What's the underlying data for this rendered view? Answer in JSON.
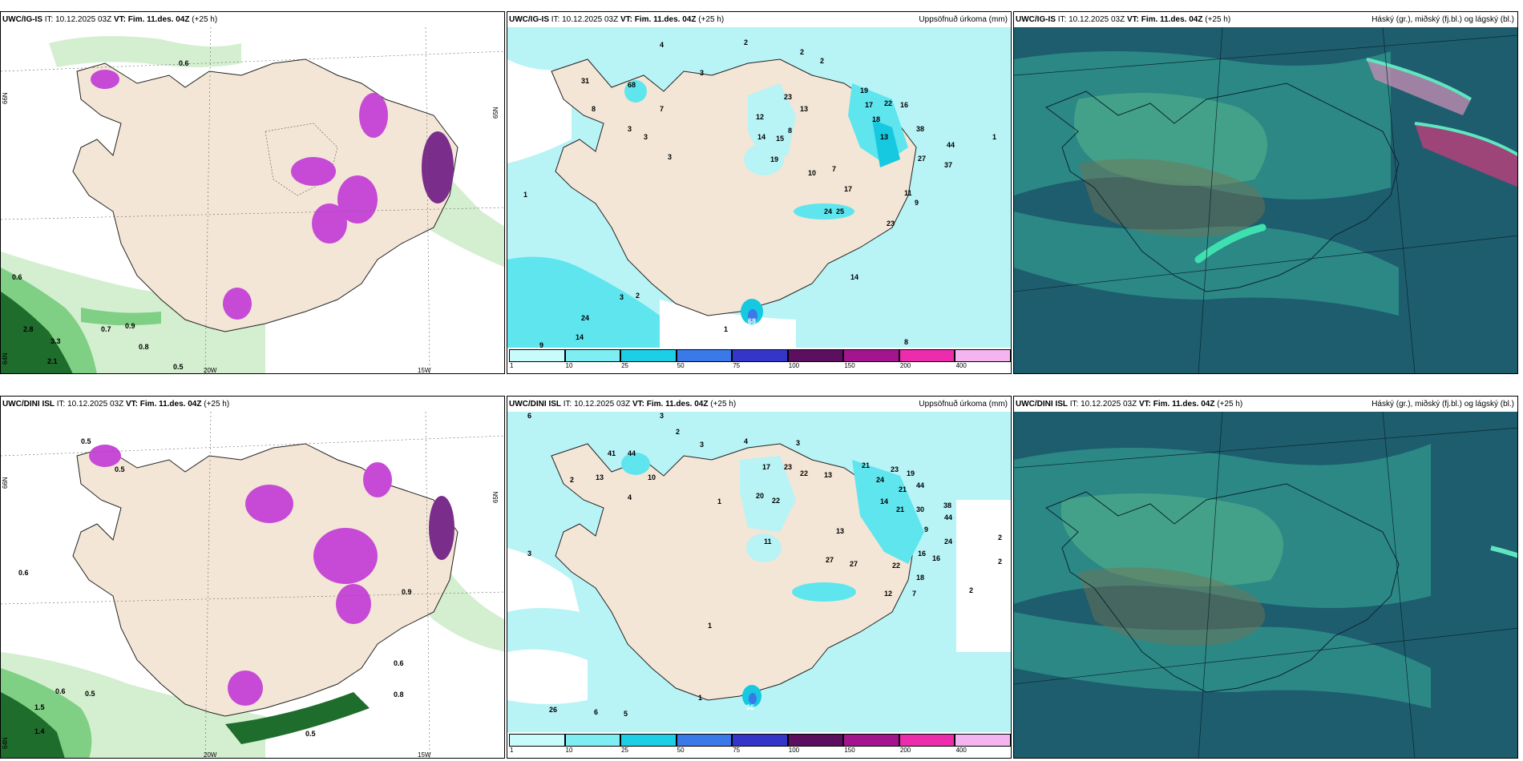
{
  "colors": {
    "land": "#f3e6d6",
    "sea_light": "#b8f3f6",
    "precip_mid": "#5ee5ee",
    "precip_high": "#16c8e0",
    "green_light": "#d4efd0",
    "green_mid": "#7fcf84",
    "green_dark": "#1f6d2d",
    "purple": "#c64ad6",
    "cloud_bg": "#1d5d6e",
    "cloud_mid": "#2f8f8a",
    "cloud_low": "#4aa88a"
  },
  "rows": [
    {
      "model": "UWC/IG-IS",
      "it": "IT: 10.12.2025 03Z",
      "vt": "VT: Fim. 11.des. 04Z",
      "lead": "(+25 h)",
      "wind_labels": [
        "0.6",
        "0.6",
        "2.8",
        "3.3",
        "0.7",
        "0.9",
        "0.8",
        "2.1",
        "0.5"
      ],
      "axis_labels": [
        "66N",
        "65N",
        "64N",
        "20W",
        "15W"
      ],
      "precip_labels": [
        "4",
        "2",
        "3",
        "2",
        "2",
        "31",
        "68",
        "8",
        "7",
        "3",
        "3",
        "3",
        "1",
        "12",
        "23",
        "13",
        "19",
        "17",
        "22",
        "16",
        "18",
        "13",
        "38",
        "44",
        "37",
        "27",
        "14",
        "15",
        "8",
        "19",
        "10",
        "7",
        "17",
        "11",
        "9",
        "24",
        "25",
        "23",
        "14",
        "1",
        "3",
        "2",
        "24",
        "14",
        "9",
        "1",
        "68",
        "8"
      ],
      "cloud_title": "Háský (gr.), miðský (fj.bl.) og lágský (bl.)",
      "precip_title": "Uppsöfnuð úrkoma (mm)"
    },
    {
      "model": "UWC/DINI ISL",
      "it": "IT: 10.12.2025 03Z",
      "vt": "VT: Fim. 11.des. 04Z",
      "lead": "(+25 h)",
      "wind_labels": [
        "0.5",
        "0.5",
        "0.6",
        "0.6",
        "0.5",
        "1.5",
        "1.4",
        "0.6",
        "0.8",
        "0.9",
        "0.5"
      ],
      "axis_labels": [
        "66N",
        "65N",
        "64N",
        "20W",
        "15W"
      ],
      "precip_labels": [
        "6",
        "3",
        "2",
        "3",
        "4",
        "3",
        "41",
        "44",
        "13",
        "10",
        "2",
        "4",
        "1",
        "17",
        "23",
        "22",
        "13",
        "21",
        "24",
        "23",
        "19",
        "20",
        "22",
        "11",
        "14",
        "21",
        "44",
        "38",
        "30",
        "44",
        "24",
        "21",
        "13",
        "27",
        "27",
        "22",
        "16",
        "16",
        "18",
        "12",
        "9",
        "7",
        "2",
        "2",
        "2",
        "3",
        "26",
        "6",
        "5",
        "1",
        "1",
        "36"
      ],
      "cloud_title": "Háský (gr.), miðský (fj.bl.) og lágský (bl.)",
      "precip_title": "Uppsöfnuð úrkoma (mm)"
    }
  ],
  "colorbar": {
    "ticks": [
      "1",
      "10",
      "25",
      "50",
      "75",
      "100",
      "150",
      "200",
      "400"
    ],
    "colors": [
      "#c8fbfb",
      "#7eeef3",
      "#1ccfe7",
      "#3a79e8",
      "#3436c9",
      "#5b0f5e",
      "#a2158e",
      "#ec2cac",
      "#f3b4f0"
    ]
  }
}
